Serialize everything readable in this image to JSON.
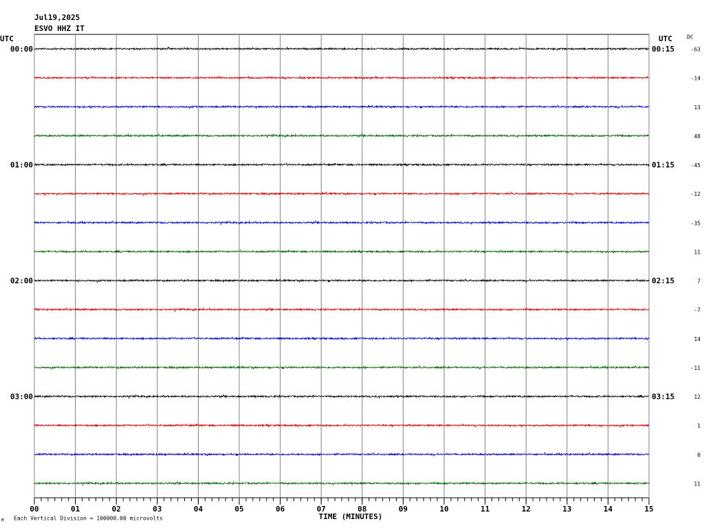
{
  "chart_data": {
    "type": "helicorder",
    "title": "Jul19,2025",
    "subtitle": "ESVO HHZ IT",
    "left_axis_label": "UTC",
    "right_axis_label": "UTC",
    "dc_label": "DC",
    "xlabel": "TIME (MINUTES)",
    "footnote": "Each Vertical Division = 100000.00 microvolts",
    "corner_mark": "M",
    "xlim": [
      0,
      15
    ],
    "xticks": [
      {
        "value": 0,
        "label": "00"
      },
      {
        "value": 1,
        "label": "01"
      },
      {
        "value": 2,
        "label": "02"
      },
      {
        "value": 3,
        "label": "03"
      },
      {
        "value": 4,
        "label": "04"
      },
      {
        "value": 5,
        "label": "05"
      },
      {
        "value": 6,
        "label": "06"
      },
      {
        "value": 7,
        "label": "07"
      },
      {
        "value": 8,
        "label": "08"
      },
      {
        "value": 9,
        "label": "09"
      },
      10,
      11,
      12,
      13,
      14,
      15
    ],
    "row_times_left": [
      "00:00",
      null,
      null,
      null,
      "01:00",
      null,
      null,
      null,
      "02:00",
      null,
      null,
      null,
      "03:00",
      null,
      null,
      null
    ],
    "row_times_right": [
      "00:15",
      null,
      null,
      null,
      "01:15",
      null,
      null,
      null,
      "02:15",
      null,
      null,
      null,
      "03:15",
      null,
      null,
      null
    ],
    "dc_values": [
      -63,
      -14,
      13,
      48,
      -45,
      -12,
      -35,
      11,
      7,
      -7,
      14,
      -11,
      12,
      1,
      0,
      11
    ],
    "trace_colors": [
      "#000000",
      "#e00000",
      "#0000d0",
      "#006400"
    ],
    "grid": true
  }
}
